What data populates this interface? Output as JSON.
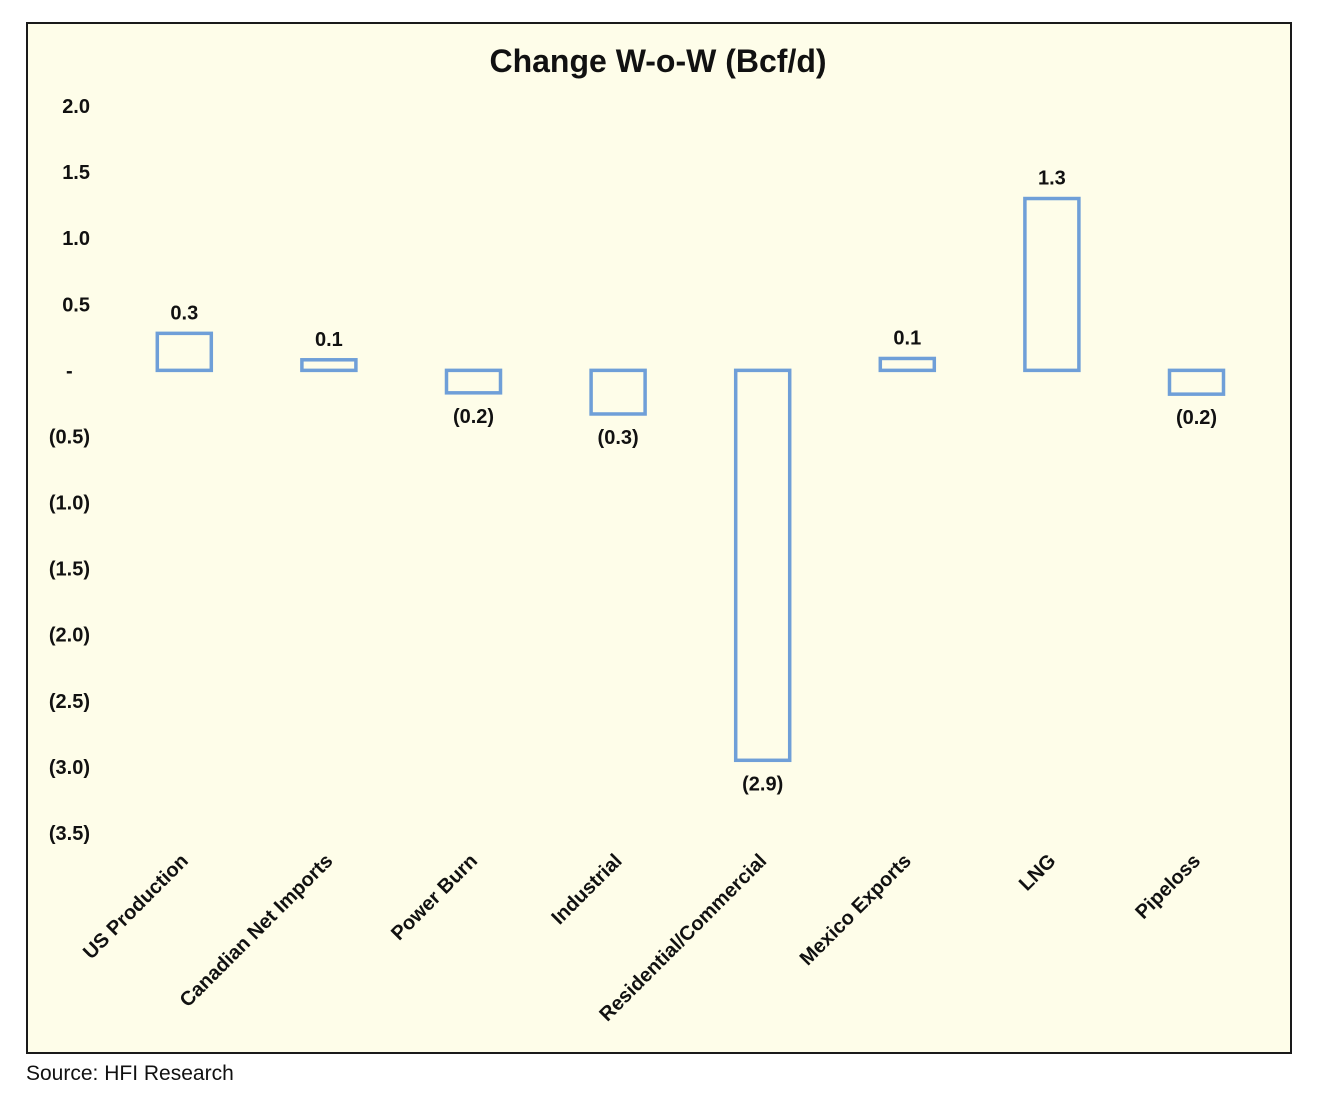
{
  "chart_data": {
    "type": "bar",
    "title": "Change W-o-W (Bcf/d)",
    "categories": [
      "US Production",
      "Canadian Net Imports",
      "Power Burn",
      "Industrial",
      "Residential/Commercial",
      "Mexico Exports",
      "LNG",
      "Pipeloss"
    ],
    "values": [
      0.28,
      0.08,
      -0.17,
      -0.33,
      -2.95,
      0.09,
      1.3,
      -0.18
    ],
    "data_labels": [
      "0.3",
      "0.1",
      "(0.2)",
      "(0.3)",
      "(2.9)",
      "0.1",
      "1.3",
      "(0.2)"
    ],
    "ylim": [
      -3.5,
      2.0
    ],
    "yticks": [
      2.0,
      1.5,
      1.0,
      0.5,
      0,
      -0.5,
      -1.0,
      -1.5,
      -2.0,
      -2.5,
      -3.0,
      -3.5
    ],
    "ytick_labels": [
      "2.0",
      "1.5",
      "1.0",
      "0.5",
      "-",
      "(0.5)",
      "(1.0)",
      "(1.5)",
      "(2.0)",
      "(2.5)",
      "(3.0)",
      "(3.5)"
    ],
    "bar_style": "outline",
    "bar_color": "#6f9fd8",
    "background_color": "#fefde9",
    "grid": false,
    "legend": "none"
  },
  "source": "Source: HFI Research"
}
